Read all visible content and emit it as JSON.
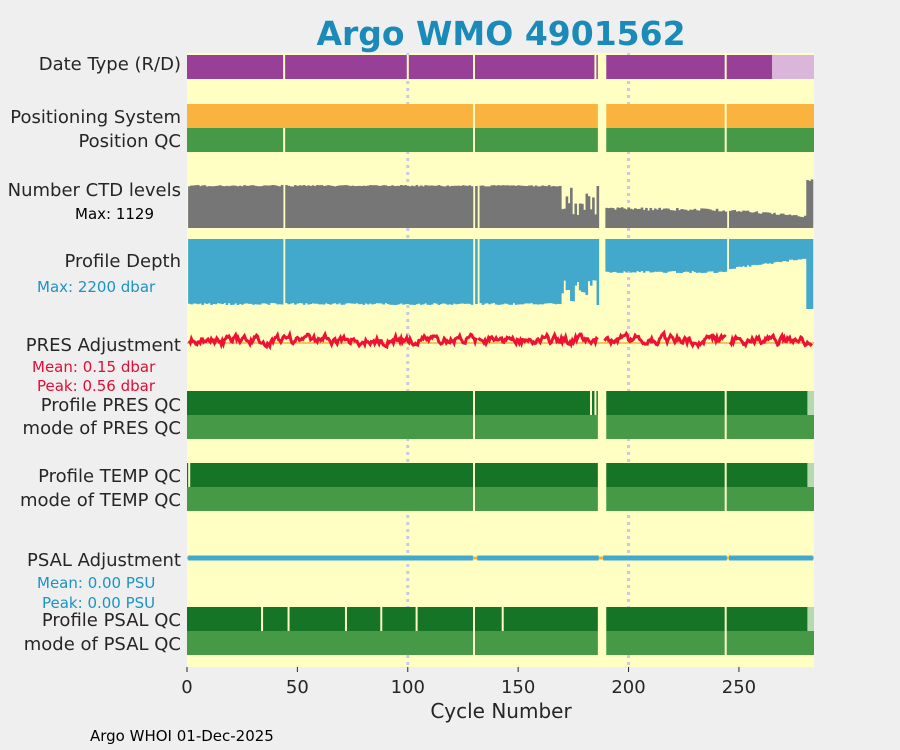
{
  "chart_data": {
    "type": "bar",
    "title": "Argo WMO 4901562",
    "xlabel": "Cycle Number",
    "xlim": [
      0,
      284
    ],
    "x_ticks": [
      0,
      50,
      100,
      150,
      200,
      250
    ],
    "footer": "Argo WHOI 01-Dec-2025",
    "ref_lines": [
      100,
      200
    ],
    "missing_cycles": [
      132,
      187,
      188,
      189,
      245
    ],
    "rows": [
      {
        "key": "date_type",
        "label": "Date Type (R/D)",
        "color": "#983f98",
        "segments": [
          {
            "from": 265,
            "to": 284,
            "color": "#dbb6db"
          }
        ],
        "gaps": [
          44,
          100,
          130,
          185,
          187,
          188,
          189,
          244
        ]
      },
      {
        "key": "pos_system",
        "label": "Positioning System",
        "color": "#fbb33f",
        "gaps": [
          130,
          187,
          188,
          189,
          244
        ]
      },
      {
        "key": "pos_qc",
        "label": "Position QC",
        "color": "#469946",
        "gaps": [
          44,
          130,
          187,
          188,
          189,
          244
        ]
      },
      {
        "key": "ctd_levels",
        "label": "Number CTD levels",
        "color": "#767676",
        "annotation": "Max: 1129",
        "annotation_color": "#000000"
      },
      {
        "key": "profile_depth",
        "label": "Profile Depth",
        "color": "#42a9cc",
        "annotation": "Max: 2200 dbar",
        "annotation_color": "#1b93c4"
      },
      {
        "key": "pres_adj",
        "label": "PRES Adjustment",
        "color": "#ee1133",
        "zero_color": "#f5b23a",
        "annotations": [
          "Mean: 0.15 dbar",
          "Peak: 0.56 dbar"
        ],
        "annotation_color": "#e30d35"
      },
      {
        "key": "profile_pres_qc",
        "label": "Profile PRES QC",
        "color": "#167427",
        "segments": [
          {
            "from": 281,
            "to": 284,
            "color": "#b5dab0"
          }
        ],
        "gaps": [
          130,
          183,
          185,
          187,
          188,
          189,
          244
        ]
      },
      {
        "key": "mode_pres_qc",
        "label": "mode of PRES QC",
        "color": "#469946",
        "gaps": [
          130,
          187,
          188,
          189,
          244
        ]
      },
      {
        "key": "profile_temp_qc",
        "label": "Profile TEMP QC",
        "color": "#167427",
        "segments": [
          {
            "from": 281,
            "to": 284,
            "color": "#b5dab0"
          }
        ],
        "gaps": [
          1,
          130,
          187,
          188,
          189,
          244
        ]
      },
      {
        "key": "mode_temp_qc",
        "label": "mode of TEMP QC",
        "color": "#469946",
        "gaps": [
          130,
          187,
          188,
          189,
          244
        ]
      },
      {
        "key": "psal_adj",
        "label": "PSAL Adjustment",
        "color": "#42a9cc",
        "zero_color": "#f5b23a",
        "annotations": [
          "Mean: 0.00 PSU",
          "Peak: 0.00 PSU"
        ],
        "annotation_color": "#1b93c4"
      },
      {
        "key": "profile_psal_qc",
        "label": "Profile PSAL QC",
        "color": "#167427",
        "segments": [
          {
            "from": 281,
            "to": 284,
            "color": "#b5dab0"
          }
        ],
        "gaps": [
          34,
          46,
          72,
          88,
          104,
          130,
          143,
          187,
          188,
          189,
          244
        ]
      },
      {
        "key": "mode_psal_qc",
        "label": "mode of PSAL QC",
        "color": "#469946",
        "gaps": [
          130,
          187,
          188,
          189,
          244
        ]
      }
    ],
    "colors": {
      "background": "#ffffc4",
      "title": "#1b8ab9",
      "ref_line": "#c9c9e6"
    }
  }
}
